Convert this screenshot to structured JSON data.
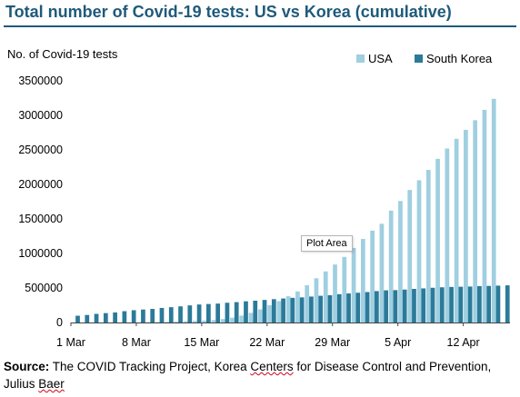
{
  "header": {
    "title": "Total number of Covid-19 tests: US vs Korea (cumulative)"
  },
  "tooltip": "Plot Area",
  "source": {
    "label": "Source:",
    "text_part1": " The COVID Tracking Project, Korea ",
    "underlined": "Centers",
    "text_part2": " for Disease Control and Prevention, ",
    "line2a": "Julius ",
    "line2b": "Baer"
  },
  "colors": {
    "usa": "#9fcfe0",
    "korea": "#2b7a9a",
    "title": "#1f5a7a"
  },
  "chart_data": {
    "type": "bar",
    "title": "Total number of Covid-19 tests: US vs Korea (cumulative)",
    "ylabel": "No. of Covid-19 tests",
    "xlabel": "",
    "ylim": [
      0,
      3500000
    ],
    "yticks": [
      0,
      500000,
      1000000,
      1500000,
      2000000,
      2500000,
      3000000,
      3500000
    ],
    "ytick_labels": [
      "0",
      "500000",
      "1000000",
      "1500000",
      "2000000",
      "2500000",
      "3000000",
      "3500000"
    ],
    "xtick_labels": [
      "1 Mar",
      "8 Mar",
      "15 Mar",
      "22 Mar",
      "29 Mar",
      "5 Apr",
      "12 Apr"
    ],
    "xtick_indices": [
      0,
      7,
      14,
      21,
      28,
      35,
      42
    ],
    "legend_position": "top-right",
    "categories": [
      "1 Mar",
      "2 Mar",
      "3 Mar",
      "4 Mar",
      "5 Mar",
      "6 Mar",
      "7 Mar",
      "8 Mar",
      "9 Mar",
      "10 Mar",
      "11 Mar",
      "12 Mar",
      "13 Mar",
      "14 Mar",
      "15 Mar",
      "16 Mar",
      "17 Mar",
      "18 Mar",
      "19 Mar",
      "20 Mar",
      "21 Mar",
      "22 Mar",
      "23 Mar",
      "24 Mar",
      "25 Mar",
      "26 Mar",
      "27 Mar",
      "28 Mar",
      "29 Mar",
      "30 Mar",
      "31 Mar",
      "1 Apr",
      "2 Apr",
      "3 Apr",
      "4 Apr",
      "5 Apr",
      "6 Apr",
      "7 Apr",
      "8 Apr",
      "9 Apr",
      "10 Apr",
      "11 Apr",
      "12 Apr",
      "13 Apr",
      "14 Apr",
      "15 Apr",
      "16 Apr"
    ],
    "series": [
      {
        "name": "USA",
        "values": [
          0,
          0,
          0,
          500,
          1000,
          1500,
          2000,
          3000,
          5000,
          7000,
          10000,
          13000,
          18000,
          23000,
          28000,
          35000,
          50000,
          70000,
          100000,
          140000,
          190000,
          250000,
          310000,
          380000,
          450000,
          540000,
          640000,
          740000,
          840000,
          950000,
          1080000,
          1210000,
          1330000,
          1430000,
          1620000,
          1760000,
          1920000,
          2060000,
          2210000,
          2370000,
          2520000,
          2660000,
          2790000,
          2930000,
          3080000,
          3240000,
          0
        ]
      },
      {
        "name": "South Korea",
        "values": [
          98000,
          109000,
          125000,
          136000,
          146000,
          164000,
          178000,
          188000,
          197000,
          211000,
          222000,
          234000,
          248000,
          261000,
          268000,
          274000,
          286000,
          295000,
          307000,
          316000,
          327000,
          338000,
          348000,
          357000,
          364000,
          376000,
          387000,
          395000,
          410000,
          421000,
          431000,
          441000,
          455000,
          466000,
          469000,
          477000,
          487000,
          494000,
          503000,
          510000,
          515000,
          518000,
          521000,
          527000,
          530000,
          534000,
          538000
        ]
      }
    ]
  }
}
